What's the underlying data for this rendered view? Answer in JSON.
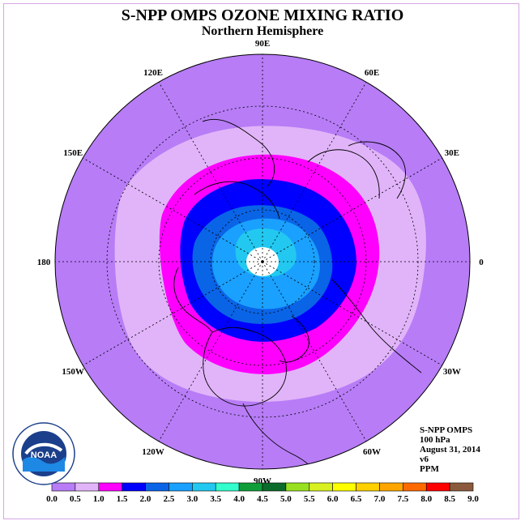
{
  "title": "S-NPP OMPS OZONE MIXING RATIO",
  "subtitle": "Northern Hemisphere",
  "longitude_labels": [
    "90E",
    "60E",
    "30E",
    "0",
    "30W",
    "60W",
    "90W",
    "120W",
    "150W",
    "180",
    "150E",
    "120E"
  ],
  "info": {
    "instrument": "S-NPP OMPS",
    "level": "100 hPa",
    "date": "August 31, 2014",
    "version": "v6",
    "units": "PPM"
  },
  "colorbar": {
    "ticks": [
      "0.0",
      "0.5",
      "1.0",
      "1.5",
      "2.0",
      "2.5",
      "3.0",
      "3.5",
      "4.0",
      "4.5",
      "5.0",
      "5.5",
      "6.0",
      "6.5",
      "7.0",
      "7.5",
      "8.0",
      "8.5",
      "9.0"
    ],
    "colors": [
      "#b77cf6",
      "#e1b4f9",
      "#ff00ff",
      "#0000ff",
      "#0a64e6",
      "#1aa0ff",
      "#22c8f0",
      "#33ffcc",
      "#0f9d3a",
      "#0b6b2a",
      "#99e020",
      "#d8f020",
      "#ffff00",
      "#ffd000",
      "#ffa500",
      "#ff6a00",
      "#ff0000",
      "#8b5a3c"
    ]
  },
  "logo_text": "NOAA",
  "colors": {
    "outer_band": "#b77cf6",
    "light_band": "#e1b4f9",
    "magenta_band": "#ff00ff",
    "blue_band": "#0000ff",
    "mid_blue_band": "#0a64e6",
    "light_blue_band": "#1aa0ff",
    "pole_missing": "#ffffff"
  }
}
